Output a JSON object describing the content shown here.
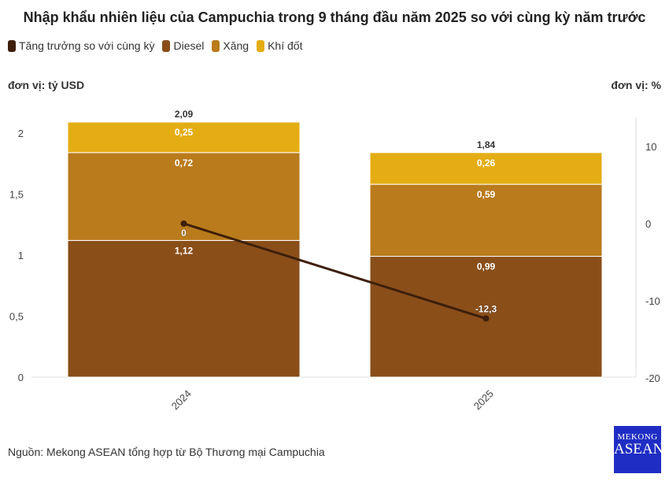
{
  "title": "Nhập khẩu nhiên liệu của Campuchia trong 9 tháng đầu năm 2025 so với cùng kỳ năm trước",
  "source": "Nguồn: Mekong ASEAN tổng hợp từ Bộ Thương mại Campuchia",
  "logo": {
    "line1": "MEKONG",
    "line2": "ASEAN"
  },
  "chart_data": {
    "type": "bar",
    "stacked": true,
    "categories": [
      "2024",
      "2025"
    ],
    "left_unit": "đơn vị: tỷ USD",
    "right_unit": "đơn vị: %",
    "ylim": [
      0,
      2.2
    ],
    "y_ticks": [
      0,
      0.5,
      1,
      1.5,
      2
    ],
    "y_tick_labels": [
      "0",
      "0,5",
      "1",
      "1,5",
      "2"
    ],
    "y2lim": [
      -20,
      20
    ],
    "y2_ticks": [
      -20,
      -10,
      0,
      10
    ],
    "y2_tick_labels": [
      "-20",
      "-10",
      "0",
      "10"
    ],
    "legend_position": "top-left",
    "series": [
      {
        "name": "Diesel",
        "values": [
          1.12,
          0.99
        ],
        "labels": [
          "1,12",
          "0,99"
        ],
        "color": "#8a4e19"
      },
      {
        "name": "Xăng",
        "values": [
          0.72,
          0.59
        ],
        "labels": [
          "0,72",
          "0,59"
        ],
        "color": "#b97b1c"
      },
      {
        "name": "Khí đốt",
        "values": [
          0.25,
          0.26
        ],
        "labels": [
          "0,25",
          "0,26"
        ],
        "color": "#e4ad14"
      }
    ],
    "totals": [
      "2,09",
      "1,84"
    ],
    "line": {
      "name": "Tăng trưởng so với cùng kỳ",
      "values": [
        0,
        -12.3
      ],
      "labels": [
        "0",
        "-12,3"
      ],
      "color": "#3d1f0b",
      "axis": "right"
    }
  }
}
